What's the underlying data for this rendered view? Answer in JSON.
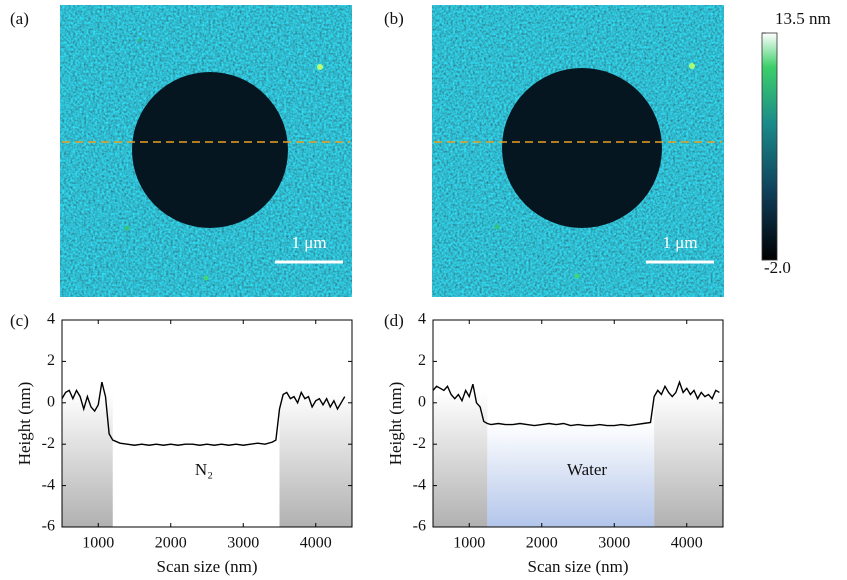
{
  "images": [
    {
      "label": "(a)",
      "scale_bar": "1 μm"
    },
    {
      "label": "(b)",
      "scale_bar": "1 μm"
    }
  ],
  "colorbar": {
    "lim": [
      -2.0,
      13.5
    ],
    "ticks": [
      {
        "value": 13.5,
        "label": "13.5 nm"
      },
      {
        "value": -2.0,
        "label": "-2.0"
      }
    ]
  },
  "chart_data": [
    {
      "type": "line",
      "panel": "(c)",
      "xlabel": "Scan size (nm)",
      "ylabel": "Height (nm)",
      "annotation": "N₂",
      "color": "#000000",
      "xlim": [
        500,
        4500
      ],
      "xticks": [
        1000,
        2000,
        3000,
        4000
      ],
      "ylim": [
        -6,
        4
      ],
      "yticks": [
        -6,
        -4,
        -2,
        0,
        2,
        4
      ],
      "regions": [
        {
          "x": [
            500,
            1200
          ],
          "top": 0.5,
          "color": "#a8a8a8"
        },
        {
          "x": [
            3500,
            4500
          ],
          "top": 0.5,
          "color": "#a8a8a8"
        }
      ],
      "x": [
        500,
        550,
        600,
        650,
        700,
        750,
        800,
        850,
        900,
        950,
        1000,
        1050,
        1100,
        1150,
        1200,
        1300,
        1400,
        1500,
        1600,
        1700,
        1800,
        1900,
        2000,
        2100,
        2200,
        2300,
        2400,
        2500,
        2600,
        2700,
        2800,
        2900,
        3000,
        3100,
        3200,
        3300,
        3400,
        3450,
        3500,
        3550,
        3600,
        3650,
        3700,
        3750,
        3800,
        3850,
        3900,
        3950,
        4000,
        4050,
        4100,
        4150,
        4200,
        4250,
        4300,
        4350,
        4400
      ],
      "values": [
        0.2,
        0.5,
        0.6,
        0.2,
        0.6,
        0.3,
        -0.3,
        0.3,
        -0.2,
        -0.4,
        -0.1,
        1.0,
        0.3,
        -1.5,
        -1.8,
        -1.95,
        -2.0,
        -2.05,
        -2.0,
        -2.05,
        -2.0,
        -2.05,
        -2.0,
        -2.05,
        -2.0,
        -2.0,
        -2.05,
        -2.0,
        -2.05,
        -2.0,
        -2.05,
        -2.0,
        -2.05,
        -2.0,
        -1.95,
        -2.0,
        -1.9,
        -1.8,
        -0.3,
        0.4,
        0.5,
        0.2,
        0.3,
        0.0,
        0.5,
        0.2,
        0.3,
        -0.2,
        0.1,
        0.2,
        -0.1,
        0.2,
        -0.2,
        0.1,
        -0.3,
        0.0,
        0.3
      ]
    },
    {
      "type": "line",
      "panel": "(d)",
      "xlabel": "Scan size (nm)",
      "ylabel": "Height (nm)",
      "annotation": "Water",
      "color": "#000000",
      "xlim": [
        500,
        4500
      ],
      "xticks": [
        1000,
        2000,
        3000,
        4000
      ],
      "ylim": [
        -6,
        4
      ],
      "yticks": [
        -6,
        -4,
        -2,
        0,
        2,
        4
      ],
      "regions": [
        {
          "x": [
            500,
            1250
          ],
          "top": 0.5,
          "color": "#a8a8a8"
        },
        {
          "x": [
            1250,
            3550
          ],
          "top": -1.0,
          "color": "#aabfe8"
        },
        {
          "x": [
            3550,
            4500
          ],
          "top": 0.5,
          "color": "#a8a8a8"
        }
      ],
      "x": [
        500,
        550,
        600,
        650,
        700,
        750,
        800,
        850,
        900,
        950,
        1000,
        1050,
        1100,
        1150,
        1200,
        1250,
        1300,
        1400,
        1500,
        1600,
        1700,
        1800,
        1900,
        2000,
        2100,
        2200,
        2300,
        2400,
        2500,
        2600,
        2700,
        2800,
        2900,
        3000,
        3100,
        3200,
        3300,
        3400,
        3500,
        3550,
        3600,
        3650,
        3700,
        3750,
        3800,
        3850,
        3900,
        3950,
        4000,
        4050,
        4100,
        4150,
        4200,
        4250,
        4300,
        4350,
        4400,
        4450
      ],
      "values": [
        0.6,
        0.8,
        0.7,
        0.6,
        0.8,
        0.4,
        0.2,
        0.4,
        0.1,
        0.6,
        0.3,
        0.9,
        0.0,
        -0.2,
        -0.9,
        -1.0,
        -1.05,
        -1.0,
        -1.05,
        -1.05,
        -1.0,
        -1.05,
        -1.1,
        -1.05,
        -1.0,
        -1.05,
        -1.0,
        -1.1,
        -1.05,
        -1.1,
        -1.1,
        -1.05,
        -1.1,
        -1.1,
        -1.05,
        -1.1,
        -1.05,
        -1.0,
        -0.95,
        0.3,
        0.6,
        0.4,
        0.8,
        0.5,
        0.3,
        0.5,
        1.0,
        0.5,
        0.7,
        0.4,
        0.6,
        0.2,
        0.5,
        0.3,
        0.4,
        0.2,
        0.6,
        0.5
      ]
    }
  ]
}
